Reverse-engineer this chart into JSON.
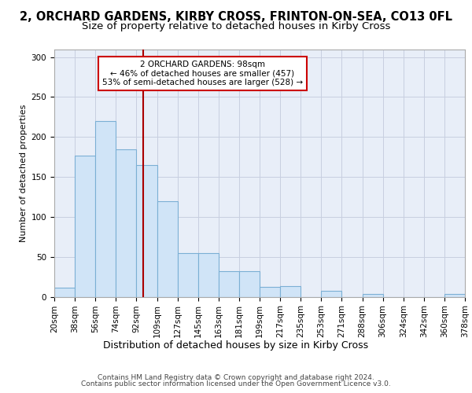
{
  "title_line1": "2, ORCHARD GARDENS, KIRBY CROSS, FRINTON-ON-SEA, CO13 0FL",
  "title_line2": "Size of property relative to detached houses in Kirby Cross",
  "xlabel": "Distribution of detached houses by size in Kirby Cross",
  "ylabel": "Number of detached properties",
  "footer_line1": "Contains HM Land Registry data © Crown copyright and database right 2024.",
  "footer_line2": "Contains public sector information licensed under the Open Government Licence v3.0.",
  "annotation_line1": "2 ORCHARD GARDENS: 98sqm",
  "annotation_line2": "← 46% of detached houses are smaller (457)",
  "annotation_line3": "53% of semi-detached houses are larger (528) →",
  "bin_edges": [
    20,
    38,
    56,
    74,
    92,
    110,
    128,
    146,
    164,
    182,
    200,
    218,
    236,
    254,
    272,
    290,
    308,
    326,
    344,
    362,
    380
  ],
  "bar_heights": [
    11,
    177,
    220,
    185,
    165,
    120,
    55,
    55,
    32,
    32,
    12,
    13,
    0,
    7,
    0,
    3,
    0,
    0,
    0,
    3
  ],
  "x_tick_labels": [
    "20sqm",
    "38sqm",
    "56sqm",
    "74sqm",
    "92sqm",
    "109sqm",
    "127sqm",
    "145sqm",
    "163sqm",
    "181sqm",
    "199sqm",
    "217sqm",
    "235sqm",
    "253sqm",
    "271sqm",
    "288sqm",
    "306sqm",
    "324sqm",
    "342sqm",
    "360sqm",
    "378sqm"
  ],
  "vline_x": 98,
  "bar_face_color": "#d0e4f7",
  "bar_edge_color": "#7bafd4",
  "vline_color": "#aa0000",
  "bg_color": "#e8eef8",
  "grid_color": "#c8cfe0",
  "ylim": [
    0,
    310
  ],
  "yticks": [
    0,
    50,
    100,
    150,
    200,
    250,
    300
  ],
  "annotation_box_edge_color": "#cc0000",
  "title1_fontsize": 10.5,
  "title2_fontsize": 9.5,
  "ylabel_fontsize": 8,
  "xlabel_fontsize": 9,
  "tick_fontsize": 7.5,
  "annotation_fontsize": 7.5,
  "footer_fontsize": 6.5
}
